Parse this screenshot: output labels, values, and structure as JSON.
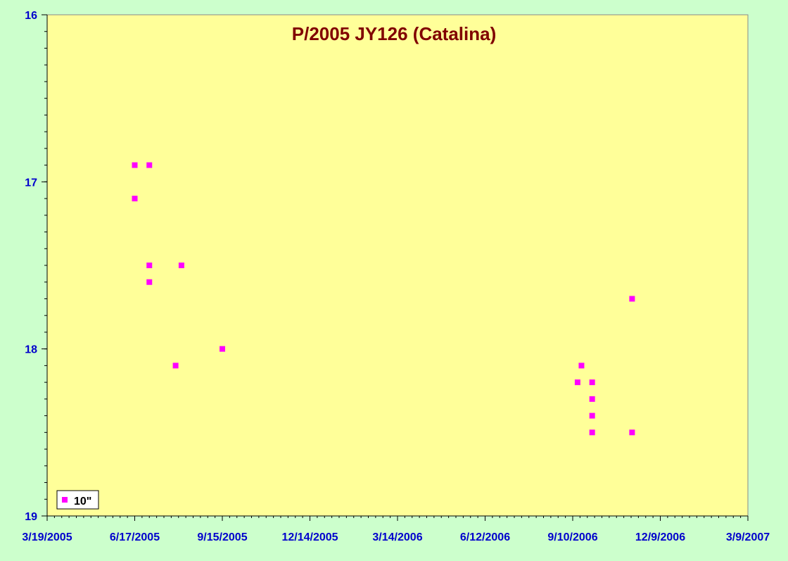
{
  "chart_data": {
    "type": "scatter",
    "title": "P/2005 JY126 (Catalina)",
    "xlabel": "",
    "ylabel": "",
    "x_start": "2005-03-19",
    "x_end": "2007-03-09",
    "x_tick_step_days": 90,
    "x_ticks": [
      "3/19/2005",
      "6/17/2005",
      "9/15/2005",
      "12/14/2005",
      "3/14/2006",
      "6/12/2006",
      "9/10/2006",
      "12/9/2006",
      "3/9/2007"
    ],
    "y_ticks": [
      "16",
      "17",
      "18",
      "19"
    ],
    "ylim": [
      19,
      16
    ],
    "y_reversed": true,
    "grid": false,
    "legend_position": "bottom-left",
    "colors": {
      "plot_background": "#ffff99",
      "page_background": "#ccffcc",
      "title": "#800000",
      "tick_labels": "#0000cc",
      "marker": "#ff00ff"
    },
    "series": [
      {
        "name": "10\"",
        "marker": "square",
        "points": [
          {
            "x": "2005-06-17",
            "y": 16.9
          },
          {
            "x": "2005-06-17",
            "y": 17.1
          },
          {
            "x": "2005-07-02",
            "y": 16.9
          },
          {
            "x": "2005-07-02",
            "y": 17.5
          },
          {
            "x": "2005-07-02",
            "y": 17.6
          },
          {
            "x": "2005-07-29",
            "y": 18.1
          },
          {
            "x": "2005-08-04",
            "y": 17.5
          },
          {
            "x": "2005-09-15",
            "y": 18.0
          },
          {
            "x": "2006-09-15",
            "y": 18.2
          },
          {
            "x": "2006-09-19",
            "y": 18.1
          },
          {
            "x": "2006-09-30",
            "y": 18.2
          },
          {
            "x": "2006-09-30",
            "y": 18.3
          },
          {
            "x": "2006-09-30",
            "y": 18.4
          },
          {
            "x": "2006-09-30",
            "y": 18.5
          },
          {
            "x": "2006-11-10",
            "y": 17.7
          },
          {
            "x": "2006-11-10",
            "y": 18.5
          }
        ]
      }
    ]
  }
}
